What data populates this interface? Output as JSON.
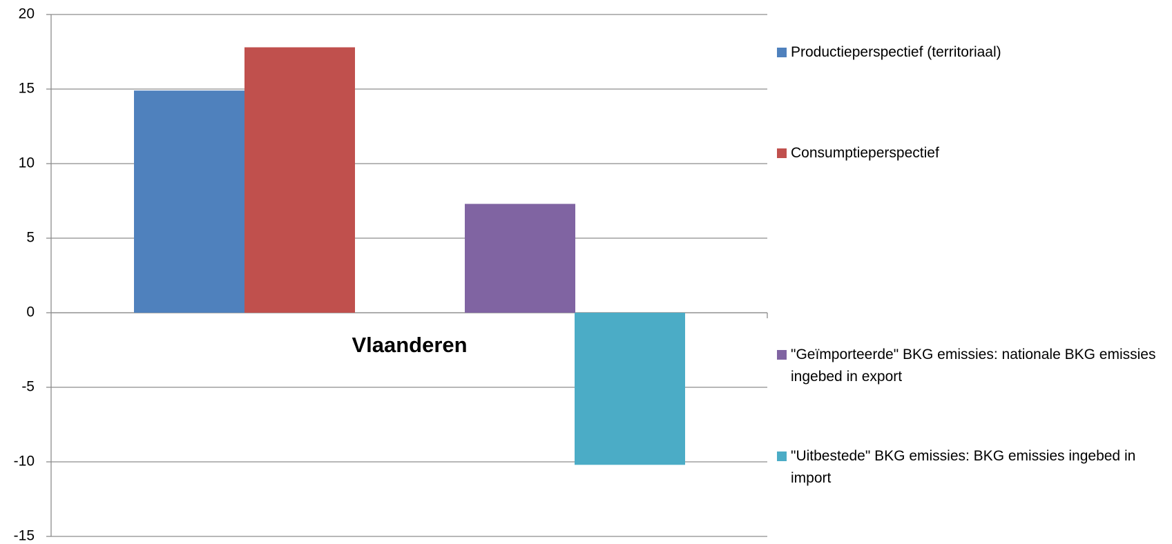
{
  "chart_data": {
    "type": "bar",
    "categories": [
      "Vlaanderen"
    ],
    "series": [
      {
        "name": "Productieperspectief (territoriaal)",
        "color": "#4f81bd",
        "values": [
          14.9
        ]
      },
      {
        "name": "Consumptieperspectief",
        "color": "#c0504d",
        "values": [
          17.8
        ]
      },
      {
        "name": "\"Geïmporteerde\" BKG emissies: nationale BKG emissies ingebed in export",
        "color": "#8064a2",
        "values": [
          7.3
        ]
      },
      {
        "name": "\"Uitbestede\" BKG emissies: BKG emissies ingebed in import",
        "color": "#4bacc6",
        "values": [
          -10.2
        ]
      }
    ],
    "ylim": [
      -15,
      20
    ],
    "yticks": [
      -15,
      -10,
      -5,
      0,
      5,
      10,
      15,
      20
    ],
    "grid": true,
    "legend": "right"
  }
}
